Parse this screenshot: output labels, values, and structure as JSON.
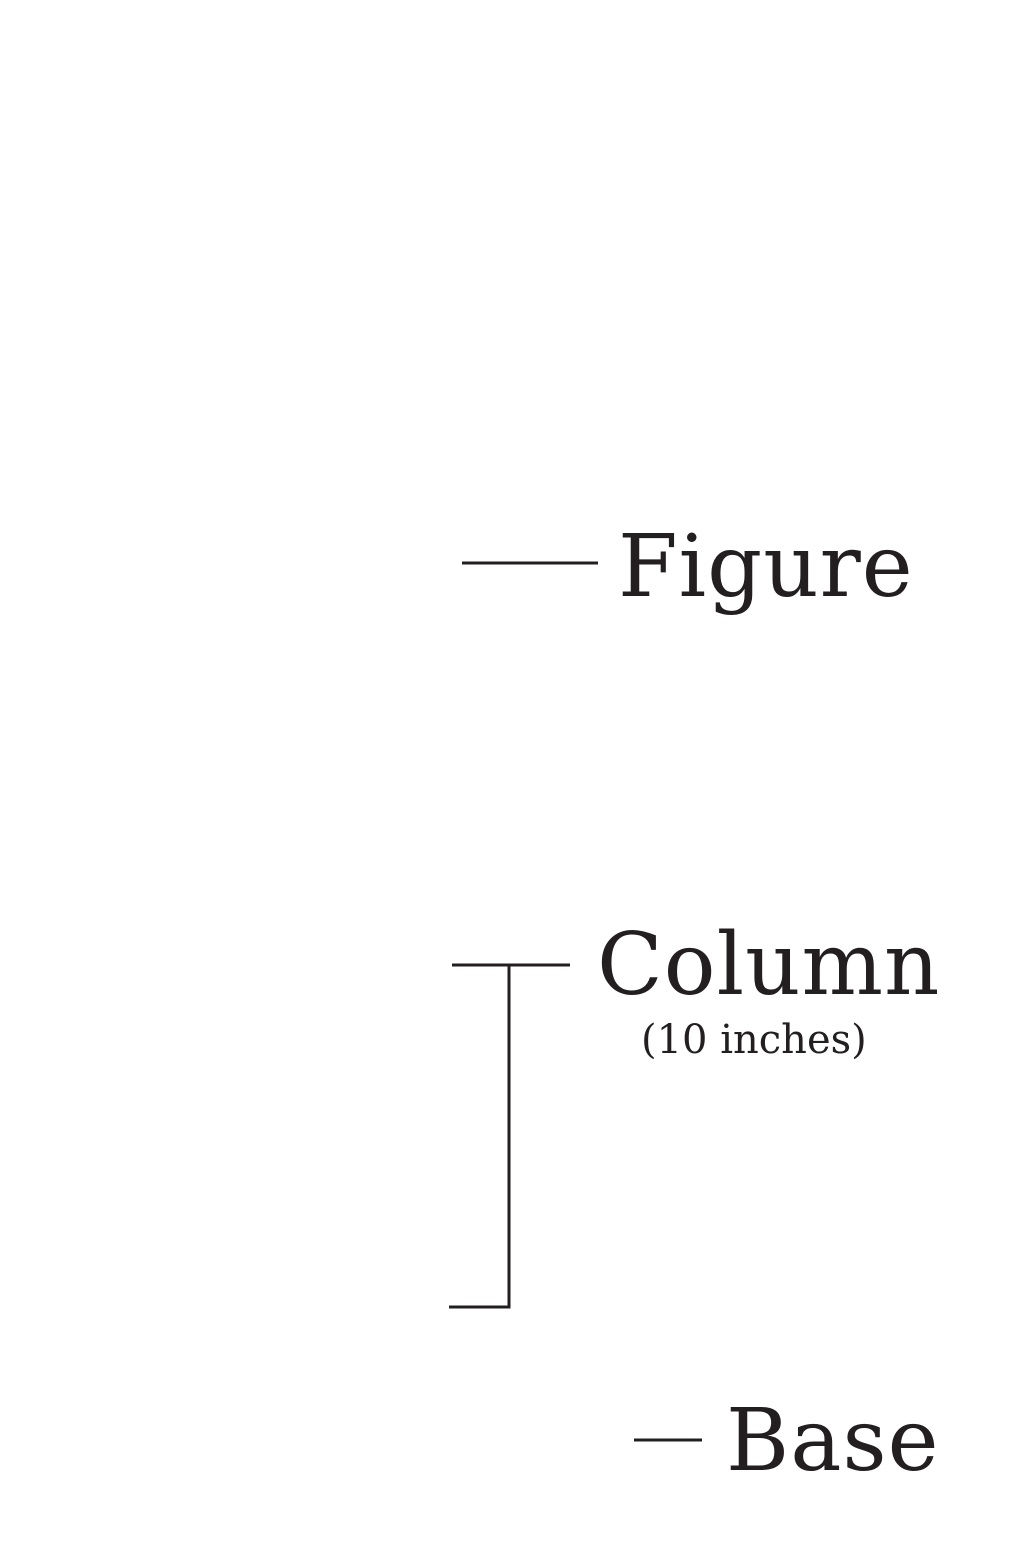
{
  "labels": {
    "figure": "Figure",
    "column": "Column",
    "column_sub": "(10 inches)",
    "base": "Base"
  },
  "colors": {
    "ink": "#231f20",
    "background": "#ffffff"
  }
}
